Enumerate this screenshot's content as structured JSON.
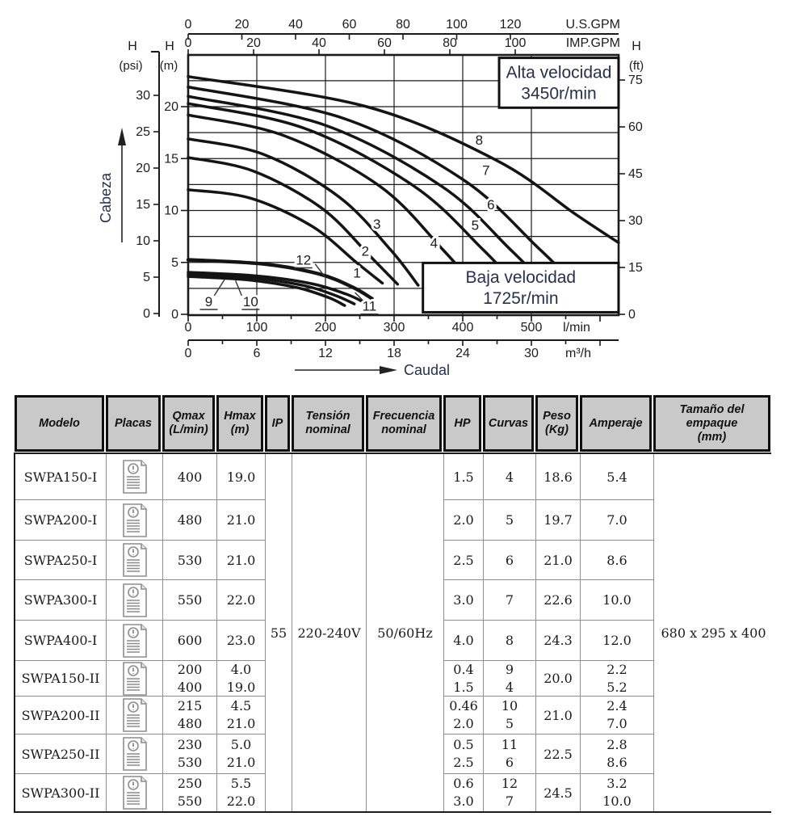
{
  "colors": {
    "accent_navy": "#26304f",
    "header_bg": "#c9c9c9",
    "grid_black": "#1a1a1a",
    "border_gray": "#8f8f8f",
    "icon_gray": "#8d8d8d"
  },
  "chart": {
    "top_axes": [
      {
        "id": "us_gpm",
        "unit": "U.S.GPM",
        "ticks": [
          0,
          20,
          40,
          60,
          80,
          100,
          120
        ]
      },
      {
        "id": "imp_gpm",
        "unit": "IMP.GPM",
        "ticks": [
          0,
          20,
          40,
          60,
          80,
          100
        ]
      }
    ],
    "bottom_axes": [
      {
        "id": "lmin",
        "unit": "l/min",
        "ticks": [
          0,
          100,
          200,
          300,
          400,
          500
        ]
      },
      {
        "id": "m3h",
        "unit": "m³/h",
        "ticks": [
          0,
          6,
          12,
          18,
          24,
          30
        ]
      }
    ],
    "left_axes": [
      {
        "id": "psi",
        "label_h": "H",
        "label_unit": "(psi)",
        "ticks": [
          0,
          5,
          10,
          15,
          20,
          25,
          30
        ]
      },
      {
        "id": "m",
        "label_h": "H",
        "label_unit": "(m)",
        "ticks": [
          0,
          5,
          10,
          15,
          20
        ]
      }
    ],
    "right_axis": {
      "id": "ft",
      "label_h": "H",
      "label_unit": "(ft)",
      "ticks": [
        0,
        15,
        30,
        45,
        60,
        75
      ]
    },
    "head_arrow_label": "Cabeza",
    "flow_arrow_label": "Caudal",
    "speed_boxes": [
      {
        "id": "alta",
        "lines": [
          "Alta velocidad",
          "3450r/min"
        ],
        "x_lmin": [
          453,
          627
        ],
        "y_m": [
          19.9,
          24.7
        ]
      },
      {
        "id": "baja",
        "lines": [
          "Baja velocidad",
          "1725r/min"
        ],
        "x_lmin": [
          342,
          627
        ],
        "y_m": [
          0.2,
          4.95
        ]
      }
    ]
  },
  "chart_data": {
    "type": "line",
    "title": "",
    "xlabel": "Caudal (l/min)",
    "ylabel": "Cabeza H (m)",
    "xlim_lmin": [
      0,
      627
    ],
    "ylim_m": [
      0,
      25
    ],
    "grid": true,
    "series": [
      {
        "name": "1",
        "speed": "3450r/min",
        "points": [
          [
            0,
            12.0
          ],
          [
            90,
            11.2
          ],
          [
            180,
            8.5
          ],
          [
            245,
            5.0
          ],
          [
            283,
            3.0
          ]
        ]
      },
      {
        "name": "2",
        "speed": "3450r/min",
        "points": [
          [
            0,
            15.1
          ],
          [
            95,
            13.8
          ],
          [
            195,
            10.2
          ],
          [
            265,
            5.6
          ],
          [
            305,
            2.9
          ]
        ]
      },
      {
        "name": "3",
        "speed": "3450r/min",
        "points": [
          [
            0,
            16.9
          ],
          [
            110,
            15.4
          ],
          [
            220,
            11.3
          ],
          [
            295,
            6.2
          ],
          [
            335,
            2.8
          ]
        ]
      },
      {
        "name": "4",
        "speed": "3450r/min",
        "points": [
          [
            0,
            19.2
          ],
          [
            140,
            17.2
          ],
          [
            280,
            12.3
          ],
          [
            370,
            6.3
          ],
          [
            418,
            2.7
          ]
        ]
      },
      {
        "name": "5",
        "speed": "3450r/min",
        "points": [
          [
            0,
            20.3
          ],
          [
            170,
            17.9
          ],
          [
            330,
            12.3
          ],
          [
            430,
            6.2
          ],
          [
            485,
            2.3
          ]
        ]
      },
      {
        "name": "6",
        "speed": "3450r/min",
        "points": [
          [
            0,
            21.0
          ],
          [
            200,
            18.2
          ],
          [
            370,
            12.3
          ],
          [
            470,
            6.2
          ],
          [
            528,
            2.3
          ]
        ]
      },
      {
        "name": "7",
        "speed": "3450r/min",
        "points": [
          [
            0,
            21.9
          ],
          [
            225,
            18.9
          ],
          [
            400,
            13.0
          ],
          [
            510,
            6.4
          ],
          [
            565,
            2.8
          ]
        ]
      },
      {
        "name": "8",
        "speed": "3450r/min",
        "points": [
          [
            0,
            22.9
          ],
          [
            260,
            20.0
          ],
          [
            450,
            14.8
          ],
          [
            565,
            9.6
          ],
          [
            627,
            6.9
          ]
        ]
      },
      {
        "name": "9",
        "speed": "1725r/min",
        "points": [
          [
            0,
            3.65
          ],
          [
            90,
            3.3
          ],
          [
            160,
            2.55
          ],
          [
            205,
            1.6
          ],
          [
            228,
            0.85
          ]
        ]
      },
      {
        "name": "10",
        "speed": "1725r/min",
        "points": [
          [
            0,
            3.85
          ],
          [
            95,
            3.5
          ],
          [
            170,
            2.75
          ],
          [
            215,
            1.8
          ],
          [
            242,
            1.0
          ]
        ]
      },
      {
        "name": "11",
        "speed": "1725r/min",
        "points": [
          [
            0,
            4.05
          ],
          [
            100,
            3.7
          ],
          [
            180,
            2.95
          ],
          [
            230,
            1.95
          ],
          [
            258,
            1.1
          ]
        ]
      },
      {
        "name": "12",
        "speed": "1725r/min",
        "points": [
          [
            0,
            5.25
          ],
          [
            110,
            4.85
          ],
          [
            190,
            3.9
          ],
          [
            240,
            2.6
          ],
          [
            268,
            1.5
          ]
        ],
        "width": 4.4
      }
    ],
    "curve_labels": [
      {
        "text": "1",
        "x": 246,
        "y": 4.0
      },
      {
        "text": "2",
        "x": 258,
        "y": 6.1
      },
      {
        "text": "3",
        "x": 275,
        "y": 8.7
      },
      {
        "text": "4",
        "x": 358,
        "y": 6.9
      },
      {
        "text": "5",
        "x": 418,
        "y": 8.6
      },
      {
        "text": "6",
        "x": 441,
        "y": 10.6
      },
      {
        "text": "7",
        "x": 434,
        "y": 13.9
      },
      {
        "text": "8",
        "x": 424,
        "y": 16.8
      },
      {
        "text": "9",
        "x": 30,
        "y": 1.25,
        "underline": true,
        "leader": [
          [
            53,
            3.35
          ],
          [
            38,
            1.8
          ]
        ]
      },
      {
        "text": "10",
        "x": 91,
        "y": 1.25,
        "underline": true,
        "leader": [
          [
            69,
            3.25
          ],
          [
            78,
            1.8
          ]
        ]
      },
      {
        "text": "11",
        "x": 264,
        "y": 0.8,
        "underline": true,
        "leader": [
          [
            243,
            2.1
          ],
          [
            255,
            1.3
          ]
        ]
      },
      {
        "text": "12",
        "x": 168,
        "y": 5.25,
        "underline": true,
        "leader": [
          [
            185,
            4.85
          ],
          [
            200,
            3.55
          ]
        ]
      }
    ]
  },
  "table": {
    "headers": [
      {
        "id": "modelo",
        "lines": [
          "Modelo"
        ]
      },
      {
        "id": "placas",
        "lines": [
          "Placas"
        ]
      },
      {
        "id": "qmax",
        "lines": [
          "Qmax",
          "(L/min)"
        ]
      },
      {
        "id": "hmax",
        "lines": [
          "Hmax",
          "(m)"
        ]
      },
      {
        "id": "ip",
        "lines": [
          "IP"
        ]
      },
      {
        "id": "tension",
        "lines": [
          "Tensión",
          "nominal"
        ]
      },
      {
        "id": "frecuencia",
        "lines": [
          "Frecuencia",
          "nominal"
        ]
      },
      {
        "id": "hp",
        "lines": [
          "HP"
        ]
      },
      {
        "id": "curvas",
        "lines": [
          "Curvas"
        ]
      },
      {
        "id": "peso",
        "lines": [
          "Peso",
          "(Kg)"
        ]
      },
      {
        "id": "amperaje",
        "lines": [
          "Amperaje"
        ]
      },
      {
        "id": "empaque",
        "lines": [
          "Tamaño del",
          "empaque",
          "(mm)"
        ]
      }
    ],
    "placas_icon": "document-info-icon",
    "shared": {
      "ip": "55",
      "tension": "220-240V",
      "frecuencia": "50/60Hz",
      "empaque": "680 x 295 x 400"
    },
    "rows": [
      {
        "modelo": "SWPA150-I",
        "qmax": [
          "400"
        ],
        "hmax": [
          "19.0"
        ],
        "hp": [
          "1.5"
        ],
        "curvas": [
          "4"
        ],
        "peso": "18.6",
        "amperaje": [
          "5.4"
        ]
      },
      {
        "modelo": "SWPA200-I",
        "qmax": [
          "480"
        ],
        "hmax": [
          "21.0"
        ],
        "hp": [
          "2.0"
        ],
        "curvas": [
          "5"
        ],
        "peso": "19.7",
        "amperaje": [
          "7.0"
        ]
      },
      {
        "modelo": "SWPA250-I",
        "qmax": [
          "530"
        ],
        "hmax": [
          "21.0"
        ],
        "hp": [
          "2.5"
        ],
        "curvas": [
          "6"
        ],
        "peso": "21.0",
        "amperaje": [
          "8.6"
        ]
      },
      {
        "modelo": "SWPA300-I",
        "qmax": [
          "550"
        ],
        "hmax": [
          "22.0"
        ],
        "hp": [
          "3.0"
        ],
        "curvas": [
          "7"
        ],
        "peso": "22.6",
        "amperaje": [
          "10.0"
        ]
      },
      {
        "modelo": "SWPA400-I",
        "qmax": [
          "600"
        ],
        "hmax": [
          "23.0"
        ],
        "hp": [
          "4.0"
        ],
        "curvas": [
          "8"
        ],
        "peso": "24.3",
        "amperaje": [
          "12.0"
        ]
      },
      {
        "modelo": "SWPA150-II",
        "qmax": [
          "200",
          "400"
        ],
        "hmax": [
          "4.0",
          "19.0"
        ],
        "hp": [
          "0.4",
          "1.5"
        ],
        "curvas": [
          "9",
          "4"
        ],
        "peso": "20.0",
        "amperaje": [
          "2.2",
          "5.2"
        ]
      },
      {
        "modelo": "SWPA200-II",
        "qmax": [
          "215",
          "480"
        ],
        "hmax": [
          "4.5",
          "21.0"
        ],
        "hp": [
          "0.46",
          "2.0"
        ],
        "curvas": [
          "10",
          "5"
        ],
        "peso": "21.0",
        "amperaje": [
          "2.4",
          "7.0"
        ]
      },
      {
        "modelo": "SWPA250-II",
        "qmax": [
          "230",
          "530"
        ],
        "hmax": [
          "5.0",
          "21.0"
        ],
        "hp": [
          "0.5",
          "2.5"
        ],
        "curvas": [
          "11",
          "6"
        ],
        "peso": "22.5",
        "amperaje": [
          "2.8",
          "8.6"
        ]
      },
      {
        "modelo": "SWPA300-II",
        "qmax": [
          "250",
          "550"
        ],
        "hmax": [
          "5.5",
          "22.0"
        ],
        "hp": [
          "0.6",
          "3.0"
        ],
        "curvas": [
          "12",
          "7"
        ],
        "peso": "24.5",
        "amperaje": [
          "3.2",
          "10.0"
        ]
      }
    ]
  }
}
